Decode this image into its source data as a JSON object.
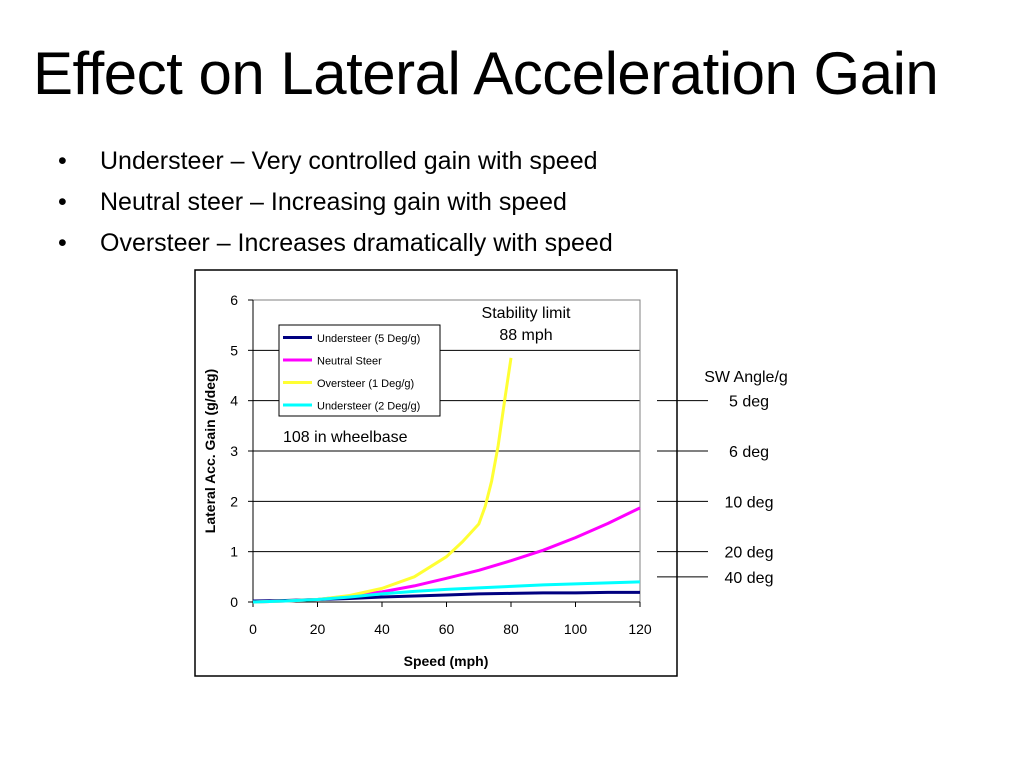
{
  "slide": {
    "title": "Effect on Lateral Acceleration Gain",
    "bullets": [
      "Understeer – Very controlled gain with speed",
      "Neutral steer – Increasing gain with speed",
      "Oversteer – Increases dramatically with speed"
    ],
    "bullet_glyph": "•"
  },
  "chart_data": {
    "type": "line",
    "xlabel": "Speed (mph)",
    "ylabel": "Lateral Acc. Gain (g/deg)",
    "xlim": [
      0,
      120
    ],
    "ylim": [
      0,
      6
    ],
    "xticks": [
      0,
      20,
      40,
      60,
      80,
      100,
      120
    ],
    "yticks": [
      0,
      1,
      2,
      3,
      4,
      5,
      6
    ],
    "grid": "horizontal",
    "legend_position": "top-left",
    "series": [
      {
        "name": "Understeer (5 Deg/g)",
        "color": "#000080",
        "x": [
          0,
          10,
          20,
          30,
          40,
          50,
          60,
          70,
          80,
          90,
          100,
          110,
          120
        ],
        "y": [
          0.02,
          0.03,
          0.05,
          0.07,
          0.1,
          0.12,
          0.14,
          0.16,
          0.17,
          0.18,
          0.18,
          0.19,
          0.19
        ]
      },
      {
        "name": "Neutral Steer",
        "color": "#ff00ff",
        "x": [
          0,
          10,
          20,
          30,
          40,
          50,
          60,
          70,
          80,
          90,
          100,
          110,
          120
        ],
        "y": [
          0.0,
          0.02,
          0.05,
          0.12,
          0.2,
          0.32,
          0.47,
          0.63,
          0.82,
          1.03,
          1.28,
          1.56,
          1.87
        ]
      },
      {
        "name": "Oversteer (1 Deg/g)",
        "color": "#ffff33",
        "x": [
          0,
          10,
          20,
          30,
          40,
          50,
          60,
          65,
          70,
          72,
          74,
          76,
          78,
          80
        ],
        "y": [
          0.0,
          0.02,
          0.05,
          0.13,
          0.27,
          0.5,
          0.9,
          1.2,
          1.55,
          1.9,
          2.4,
          3.1,
          4.0,
          4.85
        ]
      },
      {
        "name": "Understeer (2 Deg/g)",
        "color": "#00ffff",
        "x": [
          0,
          10,
          20,
          30,
          40,
          50,
          60,
          70,
          80,
          90,
          100,
          110,
          120
        ],
        "y": [
          0.0,
          0.02,
          0.05,
          0.1,
          0.16,
          0.21,
          0.25,
          0.28,
          0.31,
          0.34,
          0.36,
          0.38,
          0.4
        ]
      }
    ],
    "annotations": {
      "stability_limit": [
        "Stability limit",
        "88 mph"
      ],
      "wheelbase": "108 in wheelbase",
      "sw_angle_header": "SW Angle/g",
      "sw_angle_refs": [
        {
          "label": "5 deg",
          "y": 4.0
        },
        {
          "label": "6 deg",
          "y": 3.0
        },
        {
          "label": "10 deg",
          "y": 2.0
        },
        {
          "label": "20 deg",
          "y": 1.0
        },
        {
          "label": "40 deg",
          "y": 0.5
        }
      ]
    }
  }
}
